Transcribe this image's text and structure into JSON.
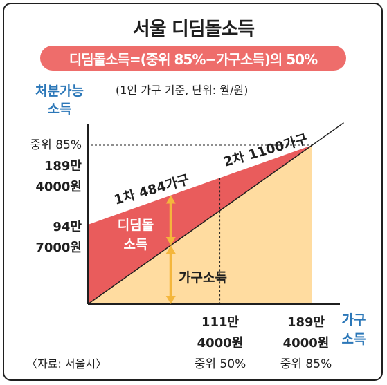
{
  "title": "서울 디딤돌소득",
  "formula": "디딤돌소득=(중위 85%−가구소득)의 50%",
  "unit_note": "(1인 가구 기준, 단위: 월/원)",
  "source": "〈자료: 서울시〉",
  "colors": {
    "red_area": "#e95c5c",
    "yellow_area": "#ffdca0",
    "arrow": "#f4b63c",
    "pill": "#ee6d6b",
    "axis_label": "#2b77b8",
    "line": "#1f1f1f"
  },
  "chart_data": {
    "type": "area",
    "xlabel": [
      "가구",
      "소득"
    ],
    "ylabel": [
      "처분가능",
      "소득"
    ],
    "x_ticks": [
      {
        "value": 1114000,
        "lines": [
          "111만",
          "4000원",
          "중위 50%"
        ]
      },
      {
        "value": 1894000,
        "lines": [
          "189만",
          "4000원",
          "중위 85%"
        ]
      }
    ],
    "y_ticks": [
      {
        "value": 1894000,
        "lines": [
          "중위 85%",
          "189만",
          "4000원"
        ]
      },
      {
        "value": 947000,
        "lines": [
          "94만",
          "7000원"
        ]
      }
    ],
    "xlim": [
      0,
      2000000
    ],
    "ylim": [
      0,
      2000000
    ],
    "series": [
      {
        "name": "디딤돌소득",
        "x": [
          0,
          1894000
        ],
        "y": [
          947000,
          1894000
        ]
      },
      {
        "name": "가구소득",
        "x": [
          0,
          1894000
        ],
        "y": [
          0,
          1894000
        ]
      }
    ],
    "reference": {
      "x": 1114000,
      "y": 1894000
    },
    "annotations": {
      "line1": "1차 484가구",
      "line2": "2차 1100가구",
      "didim_label": [
        "디딤돌",
        "소득"
      ],
      "household_label": "가구소득"
    }
  }
}
